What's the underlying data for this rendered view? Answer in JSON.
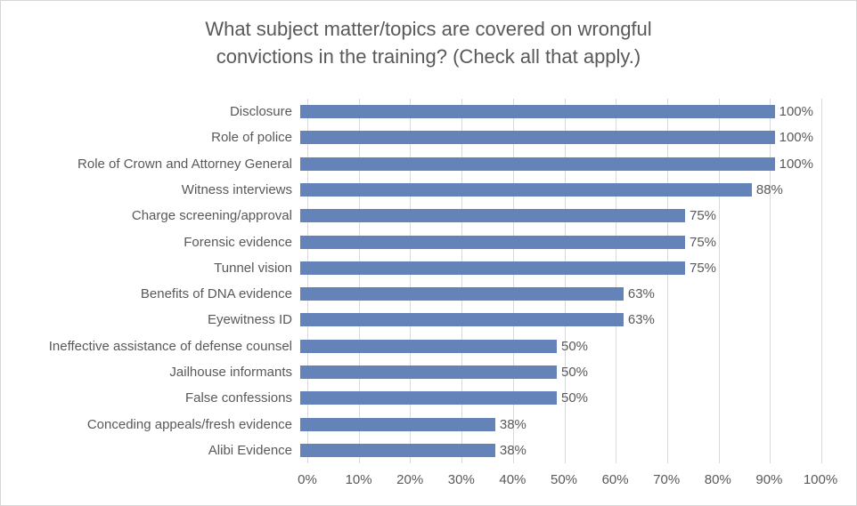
{
  "chart_data": {
    "type": "bar",
    "orientation": "horizontal",
    "title": "What subject matter/topics are covered on wrongful convictions in the training? (Check all that apply.)",
    "title_lines": [
      "What subject matter/topics are covered on wrongful",
      "convictions in the training? (Check all that apply.)"
    ],
    "categories": [
      "Disclosure",
      "Role of police",
      "Role of Crown and Attorney General",
      "Witness interviews",
      "Charge screening/approval",
      "Forensic evidence",
      "Tunnel vision",
      "Benefits of DNA evidence",
      "Eyewitness ID",
      "Ineffective assistance of defense counsel",
      "Jailhouse informants",
      "False confessions",
      "Conceding appeals/fresh evidence",
      "Alibi Evidence"
    ],
    "values": [
      100,
      100,
      100,
      88,
      75,
      75,
      75,
      63,
      63,
      50,
      50,
      50,
      38,
      38
    ],
    "value_labels": [
      "100%",
      "100%",
      "100%",
      "88%",
      "75%",
      "75%",
      "75%",
      "63%",
      "63%",
      "50%",
      "50%",
      "50%",
      "38%",
      "38%"
    ],
    "x_ticks": [
      "0%",
      "10%",
      "20%",
      "30%",
      "40%",
      "50%",
      "60%",
      "70%",
      "80%",
      "90%",
      "100%"
    ],
    "xlim": [
      0,
      100
    ],
    "grid": true,
    "legend": false,
    "colors": {
      "bar": "#6484B9",
      "gridline": "#D9D9D9",
      "text": "#595959",
      "title": "#595959",
      "border": "#D7D7D7",
      "background": "#FFFFFF"
    }
  }
}
